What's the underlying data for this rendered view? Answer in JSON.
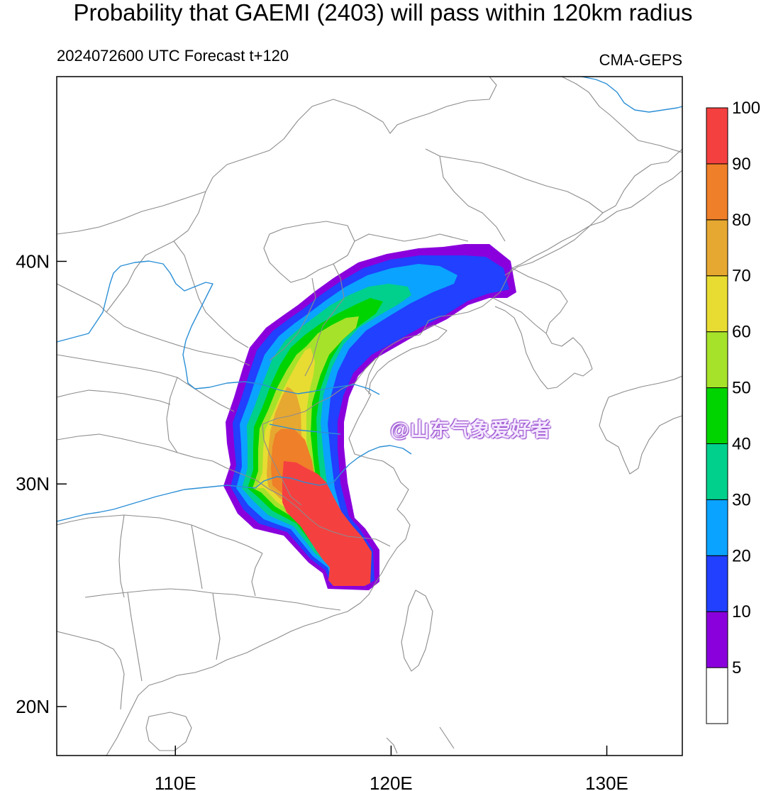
{
  "header": {
    "title": "Probability that GAEMI (2403) will pass within 120km radius",
    "subtitle_left": "2024072600 UTC Forecast t+120",
    "subtitle_right": "CMA-GEPS"
  },
  "map": {
    "lon_range": [
      104.5,
      133.5
    ],
    "lat_range": [
      17.8,
      48.3
    ],
    "lon_ticks": [
      {
        "value": 110,
        "label": "110E"
      },
      {
        "value": 120,
        "label": "120E"
      },
      {
        "value": 130,
        "label": "130E"
      }
    ],
    "lat_ticks": [
      {
        "value": 40,
        "label": "40N"
      },
      {
        "value": 30,
        "label": "30N"
      },
      {
        "value": 20,
        "label": "20N"
      }
    ],
    "colors": {
      "land_border": "#8c8c8c",
      "river": "#2b8fd6",
      "frame": "#000000"
    }
  },
  "colorbar": {
    "levels": [
      {
        "label": "5",
        "color": "#ffffff"
      },
      {
        "label": "10",
        "color": "#8a00dc"
      },
      {
        "label": "20",
        "color": "#2140ff"
      },
      {
        "label": "30",
        "color": "#0aa3ff"
      },
      {
        "label": "40",
        "color": "#00d08c"
      },
      {
        "label": "50",
        "color": "#00d400"
      },
      {
        "label": "60",
        "color": "#a6e22a"
      },
      {
        "label": "70",
        "color": "#e8dc32"
      },
      {
        "label": "80",
        "color": "#e6a830"
      },
      {
        "label": "90",
        "color": "#ef7f28"
      },
      {
        "label": "100",
        "color": "#f54040"
      }
    ]
  },
  "watermark": "@山东气象爱好者"
}
